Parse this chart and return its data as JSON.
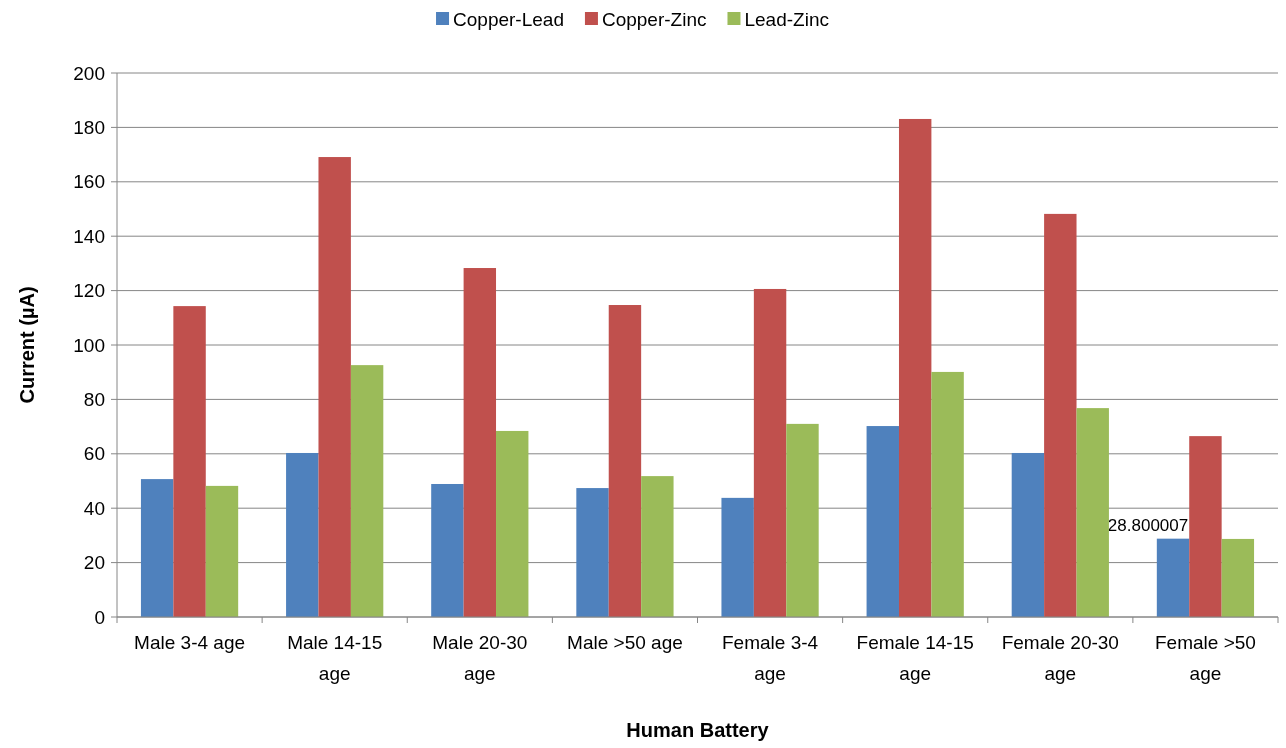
{
  "chart_data": {
    "type": "bar",
    "xlabel": "Human Battery",
    "ylabel": "Current (µA)",
    "categories": [
      "Male 3-4 age",
      "Male 14-15 age",
      "Male 20-30 age",
      "Male >50 age",
      "Female 3-4 age",
      "Female 14-15 age",
      "Female 20-30 age",
      "Female >50 age"
    ],
    "series": [
      {
        "name": "Copper-Lead",
        "color": "#4f81bd",
        "values": [
          50.7,
          60.3,
          48.9,
          47.4,
          43.8,
          70.2,
          60.3,
          28.800007
        ],
        "value_labels": [
          null,
          null,
          null,
          null,
          null,
          null,
          null,
          "28.800007"
        ]
      },
      {
        "name": "Copper-Zinc",
        "color": "#c0504d",
        "values": [
          114.3,
          169.1,
          128.3,
          114.7,
          120.6,
          183.1,
          148.2,
          66.5
        ]
      },
      {
        "name": "Lead-Zinc",
        "color": "#9bbb59",
        "values": [
          48.2,
          92.6,
          68.4,
          51.8,
          71.0,
          90.1,
          76.8,
          28.7
        ]
      }
    ],
    "ylim": [
      0,
      200
    ],
    "yticks": [
      0,
      20,
      40,
      60,
      80,
      100,
      120,
      140,
      160,
      180,
      200
    ],
    "grid": "y",
    "legend": "top"
  }
}
